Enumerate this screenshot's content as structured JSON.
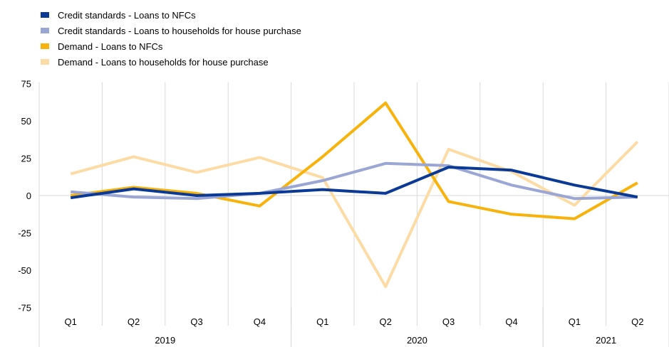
{
  "chart_data": {
    "type": "line",
    "title": "",
    "xlabel": "",
    "ylabel": "",
    "ylim": [
      -75,
      75
    ],
    "yticks": [
      75,
      50,
      25,
      0,
      -25,
      -50,
      -75
    ],
    "ytick_labels": [
      "75",
      "50",
      "25",
      "0",
      "-25",
      "-50",
      "-75"
    ],
    "categories": [
      "Q1",
      "Q2",
      "Q3",
      "Q4",
      "Q1",
      "Q2",
      "Q3",
      "Q4",
      "Q1",
      "Q2"
    ],
    "years": [
      {
        "label": "2019",
        "start": 0,
        "end": 3
      },
      {
        "label": "2020",
        "start": 4,
        "end": 7
      },
      {
        "label": "2021",
        "start": 8,
        "end": 9
      }
    ],
    "grid": "vertical",
    "legend_position": "top-left",
    "series": [
      {
        "name": "Credit standards - Loans to NFCs",
        "color": "#0b3a96",
        "values": [
          -1.5,
          4.5,
          0,
          1.5,
          4,
          1.5,
          19,
          17,
          7,
          -1
        ]
      },
      {
        "name": "Credit standards - Loans to households for house purchase",
        "color": "#9aa6d4",
        "values": [
          2.5,
          -1,
          -2,
          1.5,
          10,
          21.5,
          20,
          7,
          -2,
          -1
        ]
      },
      {
        "name": "Demand - Loans to NFCs",
        "color": "#f7b30b",
        "values": [
          0,
          5.5,
          1.5,
          -7,
          26,
          62,
          -4,
          -12.5,
          -15.5,
          8.5
        ]
      },
      {
        "name": "Demand - Loans to households for house purchase",
        "color": "#fcdca4",
        "values": [
          14.5,
          26,
          15.5,
          25.5,
          12,
          -61,
          31,
          16,
          -6.5,
          36
        ]
      }
    ]
  }
}
